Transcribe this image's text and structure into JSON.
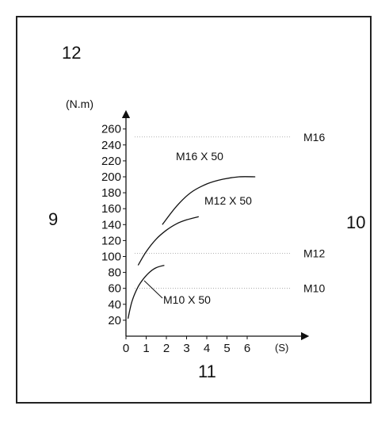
{
  "clock_labels": {
    "top": "12",
    "left": "9",
    "right": "10",
    "bottom": "11"
  },
  "chart_data": {
    "type": "line",
    "ylabel": "(N.m)",
    "xlabel": "(S)",
    "xlim": [
      0,
      7
    ],
    "ylim": [
      0,
      270
    ],
    "x_ticks": [
      "0",
      "1",
      "2",
      "3",
      "4",
      "5",
      "6"
    ],
    "x_tick_values": [
      0,
      1,
      2,
      3,
      4,
      5,
      6
    ],
    "y_ticks": [
      "20",
      "40",
      "60",
      "80",
      "100",
      "120",
      "140",
      "160",
      "180",
      "200",
      "220",
      "240",
      "260"
    ],
    "y_tick_values": [
      20,
      40,
      60,
      80,
      100,
      120,
      140,
      160,
      180,
      200,
      220,
      240,
      260
    ],
    "reference_lines": [
      {
        "label": "M16",
        "y": 250
      },
      {
        "label": "M12",
        "y": 104
      },
      {
        "label": "M10",
        "y": 60
      }
    ],
    "series": [
      {
        "name": "M16 X 50",
        "x": [
          1.8,
          2.5,
          3.2,
          4.0,
          4.8,
          5.6,
          6.4
        ],
        "y": [
          140,
          163,
          180,
          191,
          197,
          200,
          200
        ]
      },
      {
        "name": "M12 X 50",
        "x": [
          0.6,
          1.0,
          1.5,
          2.0,
          2.5,
          3.0,
          3.6
        ],
        "y": [
          89,
          106,
          122,
          133,
          141,
          146,
          150
        ]
      },
      {
        "name": "M10 X 50",
        "x": [
          0.1,
          0.3,
          0.6,
          0.9,
          1.2,
          1.5,
          1.9
        ],
        "y": [
          22,
          44,
          62,
          73,
          81,
          86,
          89
        ]
      }
    ]
  }
}
